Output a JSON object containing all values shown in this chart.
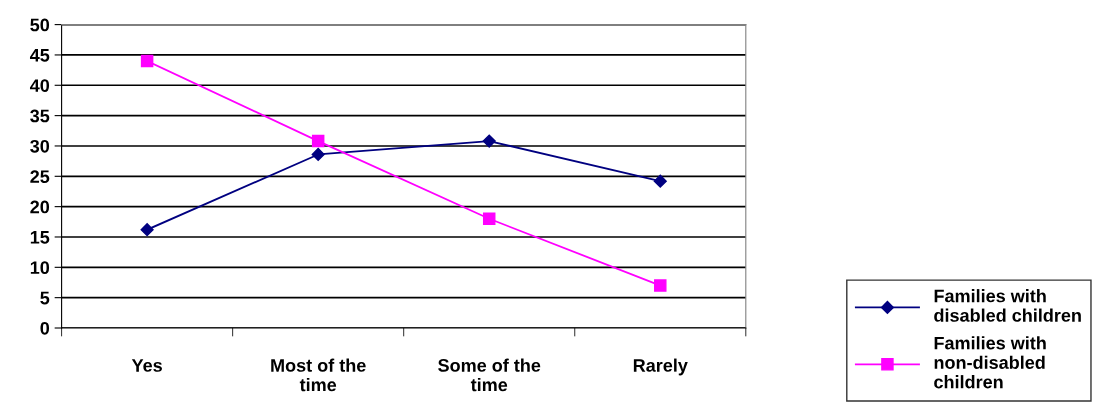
{
  "chart_data": {
    "type": "line",
    "categories": [
      "Yes",
      "Most of the time",
      "Some of the time",
      "Rarely"
    ],
    "series": [
      {
        "name": "Families with disabled children",
        "color": "#000080",
        "marker": "diamond",
        "values": [
          16.2,
          28.6,
          30.8,
          24.2
        ]
      },
      {
        "name": "Families with non-disabled children",
        "color": "#ff00ff",
        "marker": "square",
        "values": [
          44,
          30.8,
          18,
          7
        ]
      }
    ],
    "ylim": [
      0,
      50
    ],
    "yticks": [
      0,
      5,
      10,
      15,
      20,
      25,
      30,
      35,
      40,
      45,
      50
    ],
    "grid": "y",
    "legend": "bottom right",
    "line_style": "solid"
  }
}
